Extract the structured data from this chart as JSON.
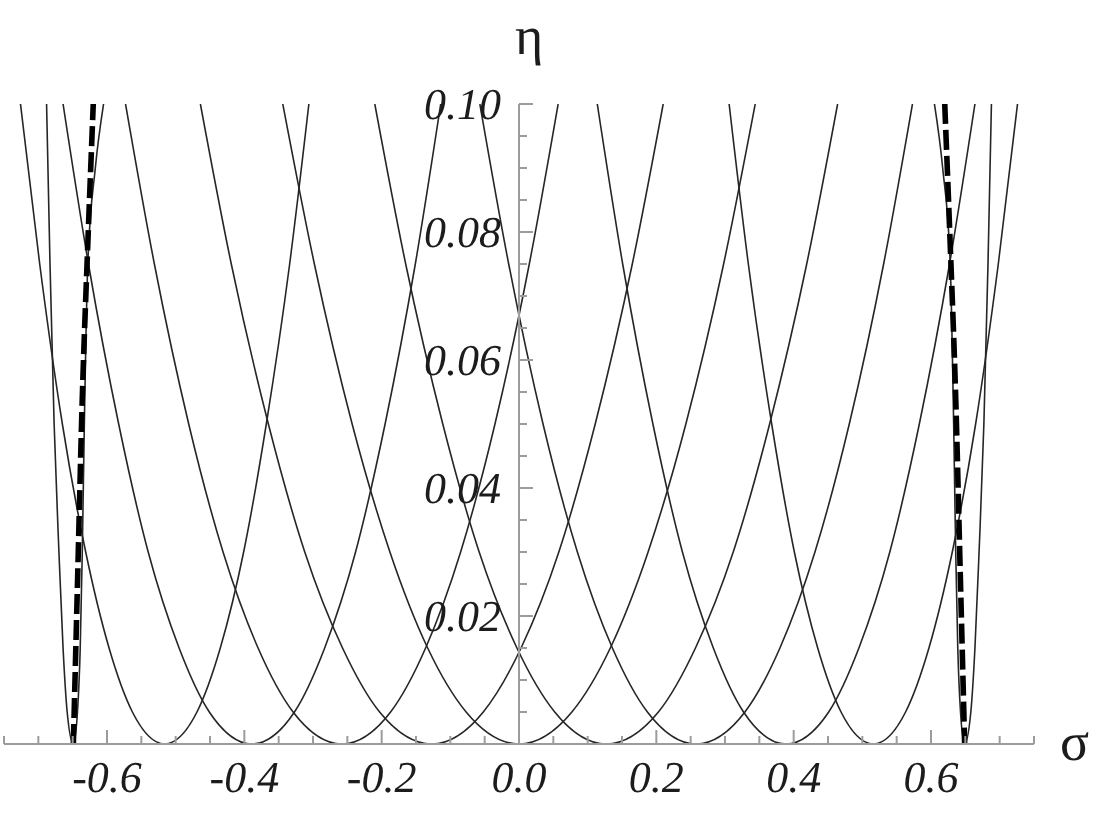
{
  "chart_data": {
    "type": "line",
    "xlabel": "σ",
    "ylabel": "η",
    "xlim": [
      -0.75,
      0.75
    ],
    "ylim": [
      0,
      0.1
    ],
    "xticks": [
      {
        "value": -0.75,
        "label": null
      },
      {
        "value": -0.7,
        "label": null
      },
      {
        "value": -0.65,
        "label": null
      },
      -0.6,
      {
        "value": -0.55,
        "label": null
      },
      {
        "value": -0.5,
        "label": null
      },
      {
        "value": -0.45,
        "label": null
      },
      -0.4,
      {
        "value": -0.35,
        "label": null
      },
      {
        "value": -0.3,
        "label": null
      },
      {
        "value": -0.25,
        "label": null
      },
      -0.2,
      {
        "value": -0.15,
        "label": null
      },
      {
        "value": -0.1,
        "label": null
      },
      {
        "value": -0.05,
        "label": null
      },
      {
        "value": 0,
        "label": "0.0"
      },
      {
        "value": 0.05,
        "label": null
      },
      {
        "value": 0.1,
        "label": null
      },
      {
        "value": 0.15,
        "label": null
      },
      0.2,
      {
        "value": 0.25,
        "label": null
      },
      {
        "value": 0.3,
        "label": null
      },
      {
        "value": 0.35,
        "label": null
      },
      0.4,
      {
        "value": 0.45,
        "label": null
      },
      {
        "value": 0.5,
        "label": null
      },
      {
        "value": 0.55,
        "label": null
      },
      0.6,
      {
        "value": 0.65,
        "label": null
      },
      {
        "value": 0.7,
        "label": null
      },
      {
        "value": 0.75,
        "label": null
      }
    ],
    "yticks": [
      {
        "value": 0.005,
        "label": null
      },
      {
        "value": 0.01,
        "label": null
      },
      {
        "value": 0.015,
        "label": null
      },
      0.02,
      {
        "value": 0.025,
        "label": null
      },
      {
        "value": 0.03,
        "label": null
      },
      {
        "value": 0.035,
        "label": null
      },
      0.04,
      {
        "value": 0.045,
        "label": null
      },
      {
        "value": 0.05,
        "label": null
      },
      {
        "value": 0.055,
        "label": null
      },
      0.06,
      {
        "value": 0.065,
        "label": null
      },
      {
        "value": 0.07,
        "label": null
      },
      {
        "value": 0.075,
        "label": null
      },
      0.08,
      {
        "value": 0.085,
        "label": null
      },
      {
        "value": 0.09,
        "label": null
      },
      {
        "value": 0.095,
        "label": null
      },
      {
        "value": 0.1,
        "label": "0.10"
      }
    ],
    "series": [
      {
        "color": "#262626",
        "x": [
          -0.688,
          -0.683,
          -0.677,
          -0.67,
          -0.664,
          -0.658,
          -0.649,
          -0.643,
          -0.639,
          -0.636,
          -0.633,
          -0.628,
          -0.617,
          -0.605
        ],
        "values": [
          0.1,
          0.075,
          0.05,
          0.03,
          0.015,
          0.005,
          0,
          0.005,
          0.015,
          0.03,
          0.05,
          0.075,
          0.09,
          0.1
        ]
      },
      {
        "color": "#262626",
        "x": [
          -0.726,
          -0.698,
          -0.665,
          -0.631,
          -0.597,
          -0.563,
          -0.516,
          -0.469,
          -0.435,
          -0.401,
          -0.368,
          -0.334,
          -0.306
        ],
        "values": [
          0.1,
          0.075,
          0.05,
          0.03,
          0.015,
          0.005,
          0,
          0.005,
          0.015,
          0.03,
          0.05,
          0.075,
          0.1
        ]
      },
      {
        "color": "#262626",
        "x": [
          -0.664,
          -0.627,
          -0.583,
          -0.54,
          -0.495,
          -0.451,
          -0.389,
          -0.327,
          -0.283,
          -0.238,
          -0.195,
          -0.151,
          -0.114
        ],
        "values": [
          0.1,
          0.075,
          0.05,
          0.03,
          0.015,
          0.005,
          0,
          0.005,
          0.015,
          0.03,
          0.05,
          0.075,
          0.1
        ]
      },
      {
        "color": "#262626",
        "x": [
          -0.573,
          -0.531,
          -0.481,
          -0.431,
          -0.38,
          -0.329,
          -0.258,
          -0.187,
          -0.136,
          -0.085,
          -0.035,
          0.015,
          0.057
        ],
        "values": [
          0.1,
          0.075,
          0.05,
          0.03,
          0.015,
          0.005,
          0,
          0.005,
          0.015,
          0.03,
          0.05,
          0.075,
          0.1
        ]
      },
      {
        "color": "#262626",
        "x": [
          -0.464,
          -0.419,
          -0.365,
          -0.312,
          -0.257,
          -0.203,
          -0.127,
          -0.052,
          0.003,
          0.058,
          0.111,
          0.165,
          0.21
        ],
        "values": [
          0.1,
          0.075,
          0.05,
          0.03,
          0.015,
          0.005,
          0,
          0.005,
          0.015,
          0.03,
          0.05,
          0.075,
          0.1
        ]
      },
      {
        "color": "#262626",
        "x": [
          -0.344,
          -0.298,
          -0.243,
          -0.188,
          -0.133,
          -0.077,
          0,
          0.077,
          0.133,
          0.188,
          0.243,
          0.298,
          0.344
        ],
        "values": [
          0.1,
          0.075,
          0.05,
          0.03,
          0.015,
          0.005,
          0,
          0.005,
          0.015,
          0.03,
          0.05,
          0.075,
          0.1
        ]
      },
      {
        "color": "#262626",
        "x": [
          -0.21,
          -0.165,
          -0.111,
          -0.058,
          -0.003,
          0.052,
          0.127,
          0.203,
          0.257,
          0.312,
          0.365,
          0.419,
          0.464
        ],
        "values": [
          0.1,
          0.075,
          0.05,
          0.03,
          0.015,
          0.005,
          0,
          0.005,
          0.015,
          0.03,
          0.05,
          0.075,
          0.1
        ]
      },
      {
        "color": "#262626",
        "x": [
          -0.057,
          -0.015,
          0.035,
          0.085,
          0.136,
          0.187,
          0.258,
          0.329,
          0.38,
          0.431,
          0.481,
          0.531,
          0.573
        ],
        "values": [
          0.1,
          0.075,
          0.05,
          0.03,
          0.015,
          0.005,
          0,
          0.005,
          0.015,
          0.03,
          0.05,
          0.075,
          0.1
        ]
      },
      {
        "color": "#262626",
        "x": [
          0.114,
          0.151,
          0.195,
          0.238,
          0.283,
          0.327,
          0.389,
          0.451,
          0.495,
          0.54,
          0.583,
          0.627,
          0.664
        ],
        "values": [
          0.1,
          0.075,
          0.05,
          0.03,
          0.015,
          0.005,
          0,
          0.005,
          0.015,
          0.03,
          0.05,
          0.075,
          0.1
        ]
      },
      {
        "color": "#262626",
        "x": [
          0.306,
          0.334,
          0.368,
          0.401,
          0.435,
          0.469,
          0.516,
          0.563,
          0.597,
          0.631,
          0.665,
          0.698,
          0.726
        ],
        "values": [
          0.1,
          0.075,
          0.05,
          0.03,
          0.015,
          0.005,
          0,
          0.005,
          0.015,
          0.03,
          0.05,
          0.075,
          0.1
        ]
      },
      {
        "color": "#262626",
        "x": [
          0.605,
          0.617,
          0.628,
          0.633,
          0.636,
          0.639,
          0.643,
          0.649,
          0.658,
          0.664,
          0.67,
          0.677,
          0.683,
          0.688
        ],
        "values": [
          0.1,
          0.09,
          0.075,
          0.05,
          0.03,
          0.015,
          0.005,
          0,
          0.005,
          0.015,
          0.03,
          0.05,
          0.075,
          0.1
        ]
      },
      {
        "color": "#000000",
        "line_style": "dashed",
        "x": [
          -0.649,
          -0.643,
          -0.636,
          -0.628,
          -0.62
        ],
        "values": [
          0,
          0.025,
          0.054,
          0.078,
          0.1
        ]
      },
      {
        "color": "#000000",
        "line_style": "dashed",
        "x": [
          0.62,
          0.628,
          0.636,
          0.643,
          0.649
        ],
        "values": [
          0.1,
          0.078,
          0.054,
          0.025,
          0
        ]
      }
    ]
  }
}
